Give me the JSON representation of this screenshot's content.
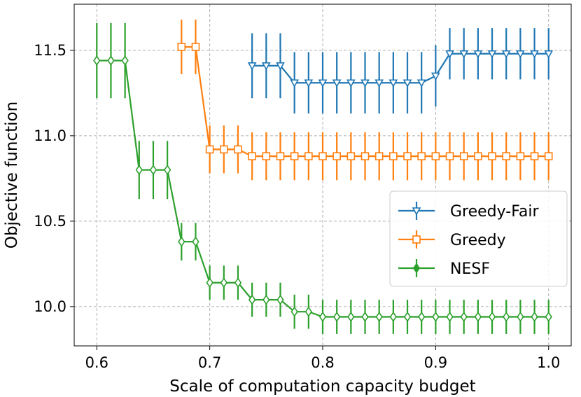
{
  "chart_data": {
    "type": "line",
    "xlabel": "Scale of computation capacity budget",
    "ylabel": "Objective function",
    "xlim": [
      0.58,
      1.02
    ],
    "ylim": [
      9.77,
      11.77
    ],
    "xticks": [
      0.6,
      0.7,
      0.8,
      0.9,
      1.0
    ],
    "xtick_labels": [
      "0.6",
      "0.7",
      "0.8",
      "0.9",
      "1.0"
    ],
    "yticks": [
      10.0,
      10.5,
      11.0,
      11.5
    ],
    "ytick_labels": [
      "10.0",
      "10.5",
      "11.0",
      "11.5"
    ],
    "grid": true,
    "legend_position": "right",
    "series": [
      {
        "name": "Greedy-Fair",
        "color": "#1f77b4",
        "marker": "triangle-down",
        "x": [
          0.7375,
          0.75,
          0.7625,
          0.775,
          0.7875,
          0.8,
          0.8125,
          0.825,
          0.8375,
          0.85,
          0.8625,
          0.875,
          0.8875,
          0.9,
          0.9125,
          0.925,
          0.9375,
          0.95,
          0.9625,
          0.975,
          0.9875,
          1.0
        ],
        "y": [
          11.41,
          11.41,
          11.41,
          11.31,
          11.31,
          11.31,
          11.31,
          11.31,
          11.31,
          11.31,
          11.31,
          11.31,
          11.31,
          11.35,
          11.48,
          11.48,
          11.48,
          11.48,
          11.48,
          11.48,
          11.48,
          11.48
        ],
        "err": [
          0.19,
          0.19,
          0.19,
          0.18,
          0.18,
          0.18,
          0.18,
          0.18,
          0.18,
          0.18,
          0.18,
          0.18,
          0.18,
          0.18,
          0.15,
          0.15,
          0.15,
          0.15,
          0.15,
          0.15,
          0.15,
          0.15
        ]
      },
      {
        "name": "Greedy",
        "color": "#ff7f0e",
        "marker": "square",
        "x": [
          0.675,
          0.6875,
          0.7,
          0.7125,
          0.725,
          0.7375,
          0.75,
          0.7625,
          0.775,
          0.7875,
          0.8,
          0.8125,
          0.825,
          0.8375,
          0.85,
          0.8625,
          0.875,
          0.8875,
          0.9,
          0.9125,
          0.925,
          0.9375,
          0.95,
          0.9625,
          0.975,
          0.9875,
          1.0
        ],
        "y": [
          11.52,
          11.52,
          10.92,
          10.92,
          10.92,
          10.88,
          10.88,
          10.88,
          10.88,
          10.88,
          10.88,
          10.88,
          10.88,
          10.88,
          10.88,
          10.88,
          10.88,
          10.88,
          10.88,
          10.88,
          10.88,
          10.88,
          10.88,
          10.88,
          10.88,
          10.88,
          10.88
        ],
        "err": [
          0.16,
          0.16,
          0.14,
          0.14,
          0.14,
          0.14,
          0.14,
          0.14,
          0.14,
          0.14,
          0.14,
          0.14,
          0.14,
          0.14,
          0.14,
          0.14,
          0.14,
          0.14,
          0.14,
          0.14,
          0.14,
          0.14,
          0.14,
          0.14,
          0.14,
          0.14,
          0.14
        ]
      },
      {
        "name": "NESF",
        "color": "#2ca02c",
        "marker": "diamond",
        "x": [
          0.6,
          0.6125,
          0.625,
          0.6375,
          0.65,
          0.6625,
          0.675,
          0.6875,
          0.7,
          0.7125,
          0.725,
          0.7375,
          0.75,
          0.7625,
          0.775,
          0.7875,
          0.8,
          0.8125,
          0.825,
          0.8375,
          0.85,
          0.8625,
          0.875,
          0.8875,
          0.9,
          0.9125,
          0.925,
          0.9375,
          0.95,
          0.9625,
          0.975,
          0.9875,
          1.0
        ],
        "y": [
          11.44,
          11.44,
          11.44,
          10.8,
          10.8,
          10.8,
          10.38,
          10.38,
          10.14,
          10.14,
          10.14,
          10.04,
          10.04,
          10.04,
          9.97,
          9.97,
          9.94,
          9.94,
          9.94,
          9.94,
          9.94,
          9.94,
          9.94,
          9.94,
          9.94,
          9.94,
          9.94,
          9.94,
          9.94,
          9.94,
          9.94,
          9.94,
          9.94
        ],
        "err": [
          0.22,
          0.22,
          0.22,
          0.17,
          0.17,
          0.17,
          0.11,
          0.11,
          0.1,
          0.1,
          0.1,
          0.1,
          0.1,
          0.1,
          0.1,
          0.1,
          0.1,
          0.1,
          0.1,
          0.1,
          0.1,
          0.1,
          0.1,
          0.1,
          0.1,
          0.1,
          0.1,
          0.1,
          0.1,
          0.1,
          0.1,
          0.1,
          0.1
        ]
      }
    ]
  }
}
